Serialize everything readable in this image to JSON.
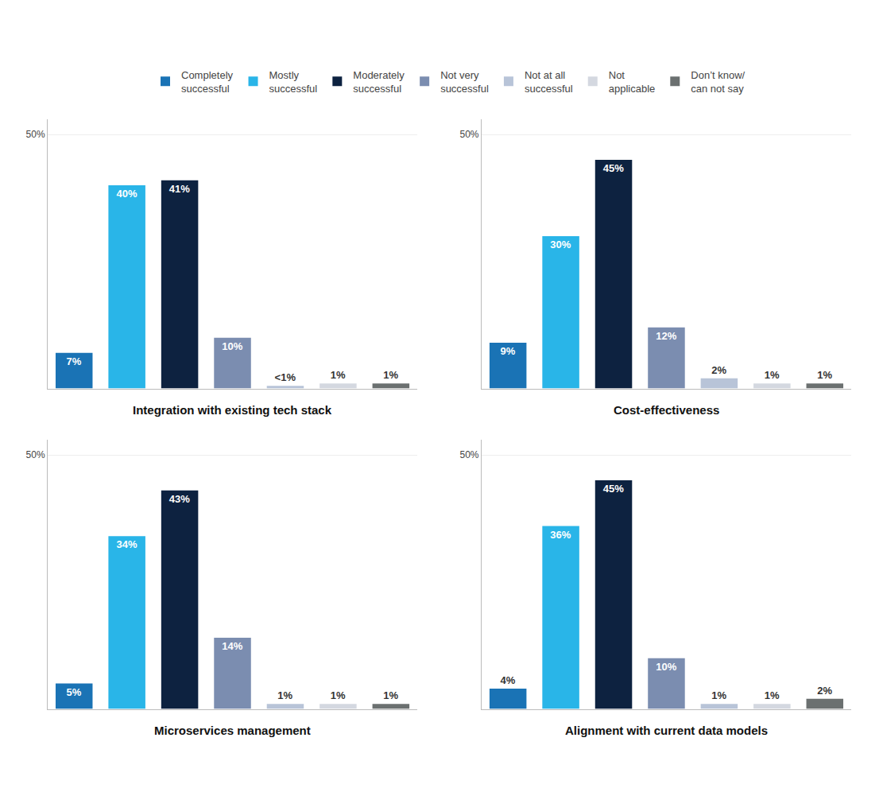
{
  "chart_data": [
    {
      "type": "bar",
      "title": "Integration with existing tech stack",
      "categories": [
        "Completely\nsuccessful",
        "Mostly\nsuccessful",
        "Moderately\nsuccessful",
        "Not very\nsuccessful",
        "Not at all\nsuccessful",
        "Not\napplicable",
        "Don’t know/\ncan not say"
      ],
      "values": [
        7,
        40,
        41,
        10,
        0.5,
        1,
        1
      ],
      "value_labels": [
        "7%",
        "40%",
        "41%",
        "10%",
        "<1%",
        "1%",
        "1%"
      ],
      "colors": [
        "#1a73b5",
        "#29b5e8",
        "#0d2240",
        "#7b8db0",
        "#b8c4d8",
        "#d4d8e0",
        "#6b7070"
      ],
      "ylim": [
        0,
        53
      ],
      "yticks": [
        {
          "value": 50,
          "label": "50%"
        }
      ],
      "grid": true,
      "data_labels": true,
      "tick_labels": "y",
      "legend": "top"
    },
    {
      "type": "bar",
      "title": "Cost-effectiveness",
      "categories": [
        "Completely\nsuccessful",
        "Mostly\nsuccessful",
        "Moderately\nsuccessful",
        "Not very\nsuccessful",
        "Not at all\nsuccessful",
        "Not\napplicable",
        "Don’t know/\ncan not say"
      ],
      "values": [
        9,
        30,
        45,
        12,
        2,
        1,
        1
      ],
      "value_labels": [
        "9%",
        "30%",
        "45%",
        "12%",
        "2%",
        "1%",
        "1%"
      ],
      "colors": [
        "#1a73b5",
        "#29b5e8",
        "#0d2240",
        "#7b8db0",
        "#b8c4d8",
        "#d4d8e0",
        "#6b7070"
      ],
      "ylim": [
        0,
        53
      ],
      "yticks": [
        {
          "value": 50,
          "label": "50%"
        }
      ],
      "grid": true,
      "data_labels": true,
      "tick_labels": "y",
      "legend": "top"
    },
    {
      "type": "bar",
      "title": "Microservices management",
      "categories": [
        "Completely\nsuccessful",
        "Mostly\nsuccessful",
        "Moderately\nsuccessful",
        "Not very\nsuccessful",
        "Not at all\nsuccessful",
        "Not\napplicable",
        "Don’t know/\ncan not say"
      ],
      "values": [
        5,
        34,
        43,
        14,
        1,
        1,
        1
      ],
      "value_labels": [
        "5%",
        "34%",
        "43%",
        "14%",
        "1%",
        "1%",
        "1%"
      ],
      "colors": [
        "#1a73b5",
        "#29b5e8",
        "#0d2240",
        "#7b8db0",
        "#b8c4d8",
        "#d4d8e0",
        "#6b7070"
      ],
      "ylim": [
        0,
        53
      ],
      "yticks": [
        {
          "value": 50,
          "label": "50%"
        }
      ],
      "grid": true,
      "data_labels": true,
      "tick_labels": "y",
      "legend": "top"
    },
    {
      "type": "bar",
      "title": "Alignment with current data models",
      "categories": [
        "Completely\nsuccessful",
        "Mostly\nsuccessful",
        "Moderately\nsuccessful",
        "Not very\nsuccessful",
        "Not at all\nsuccessful",
        "Not\napplicable",
        "Don’t know/\ncan not say"
      ],
      "values": [
        4,
        36,
        45,
        10,
        1,
        1,
        2
      ],
      "value_labels": [
        "4%",
        "36%",
        "45%",
        "10%",
        "1%",
        "1%",
        "2%"
      ],
      "colors": [
        "#1a73b5",
        "#29b5e8",
        "#0d2240",
        "#7b8db0",
        "#b8c4d8",
        "#d4d8e0",
        "#6b7070"
      ],
      "ylim": [
        0,
        53
      ],
      "yticks": [
        {
          "value": 50,
          "label": "50%"
        }
      ],
      "grid": true,
      "data_labels": true,
      "tick_labels": "y",
      "legend": "top"
    }
  ]
}
